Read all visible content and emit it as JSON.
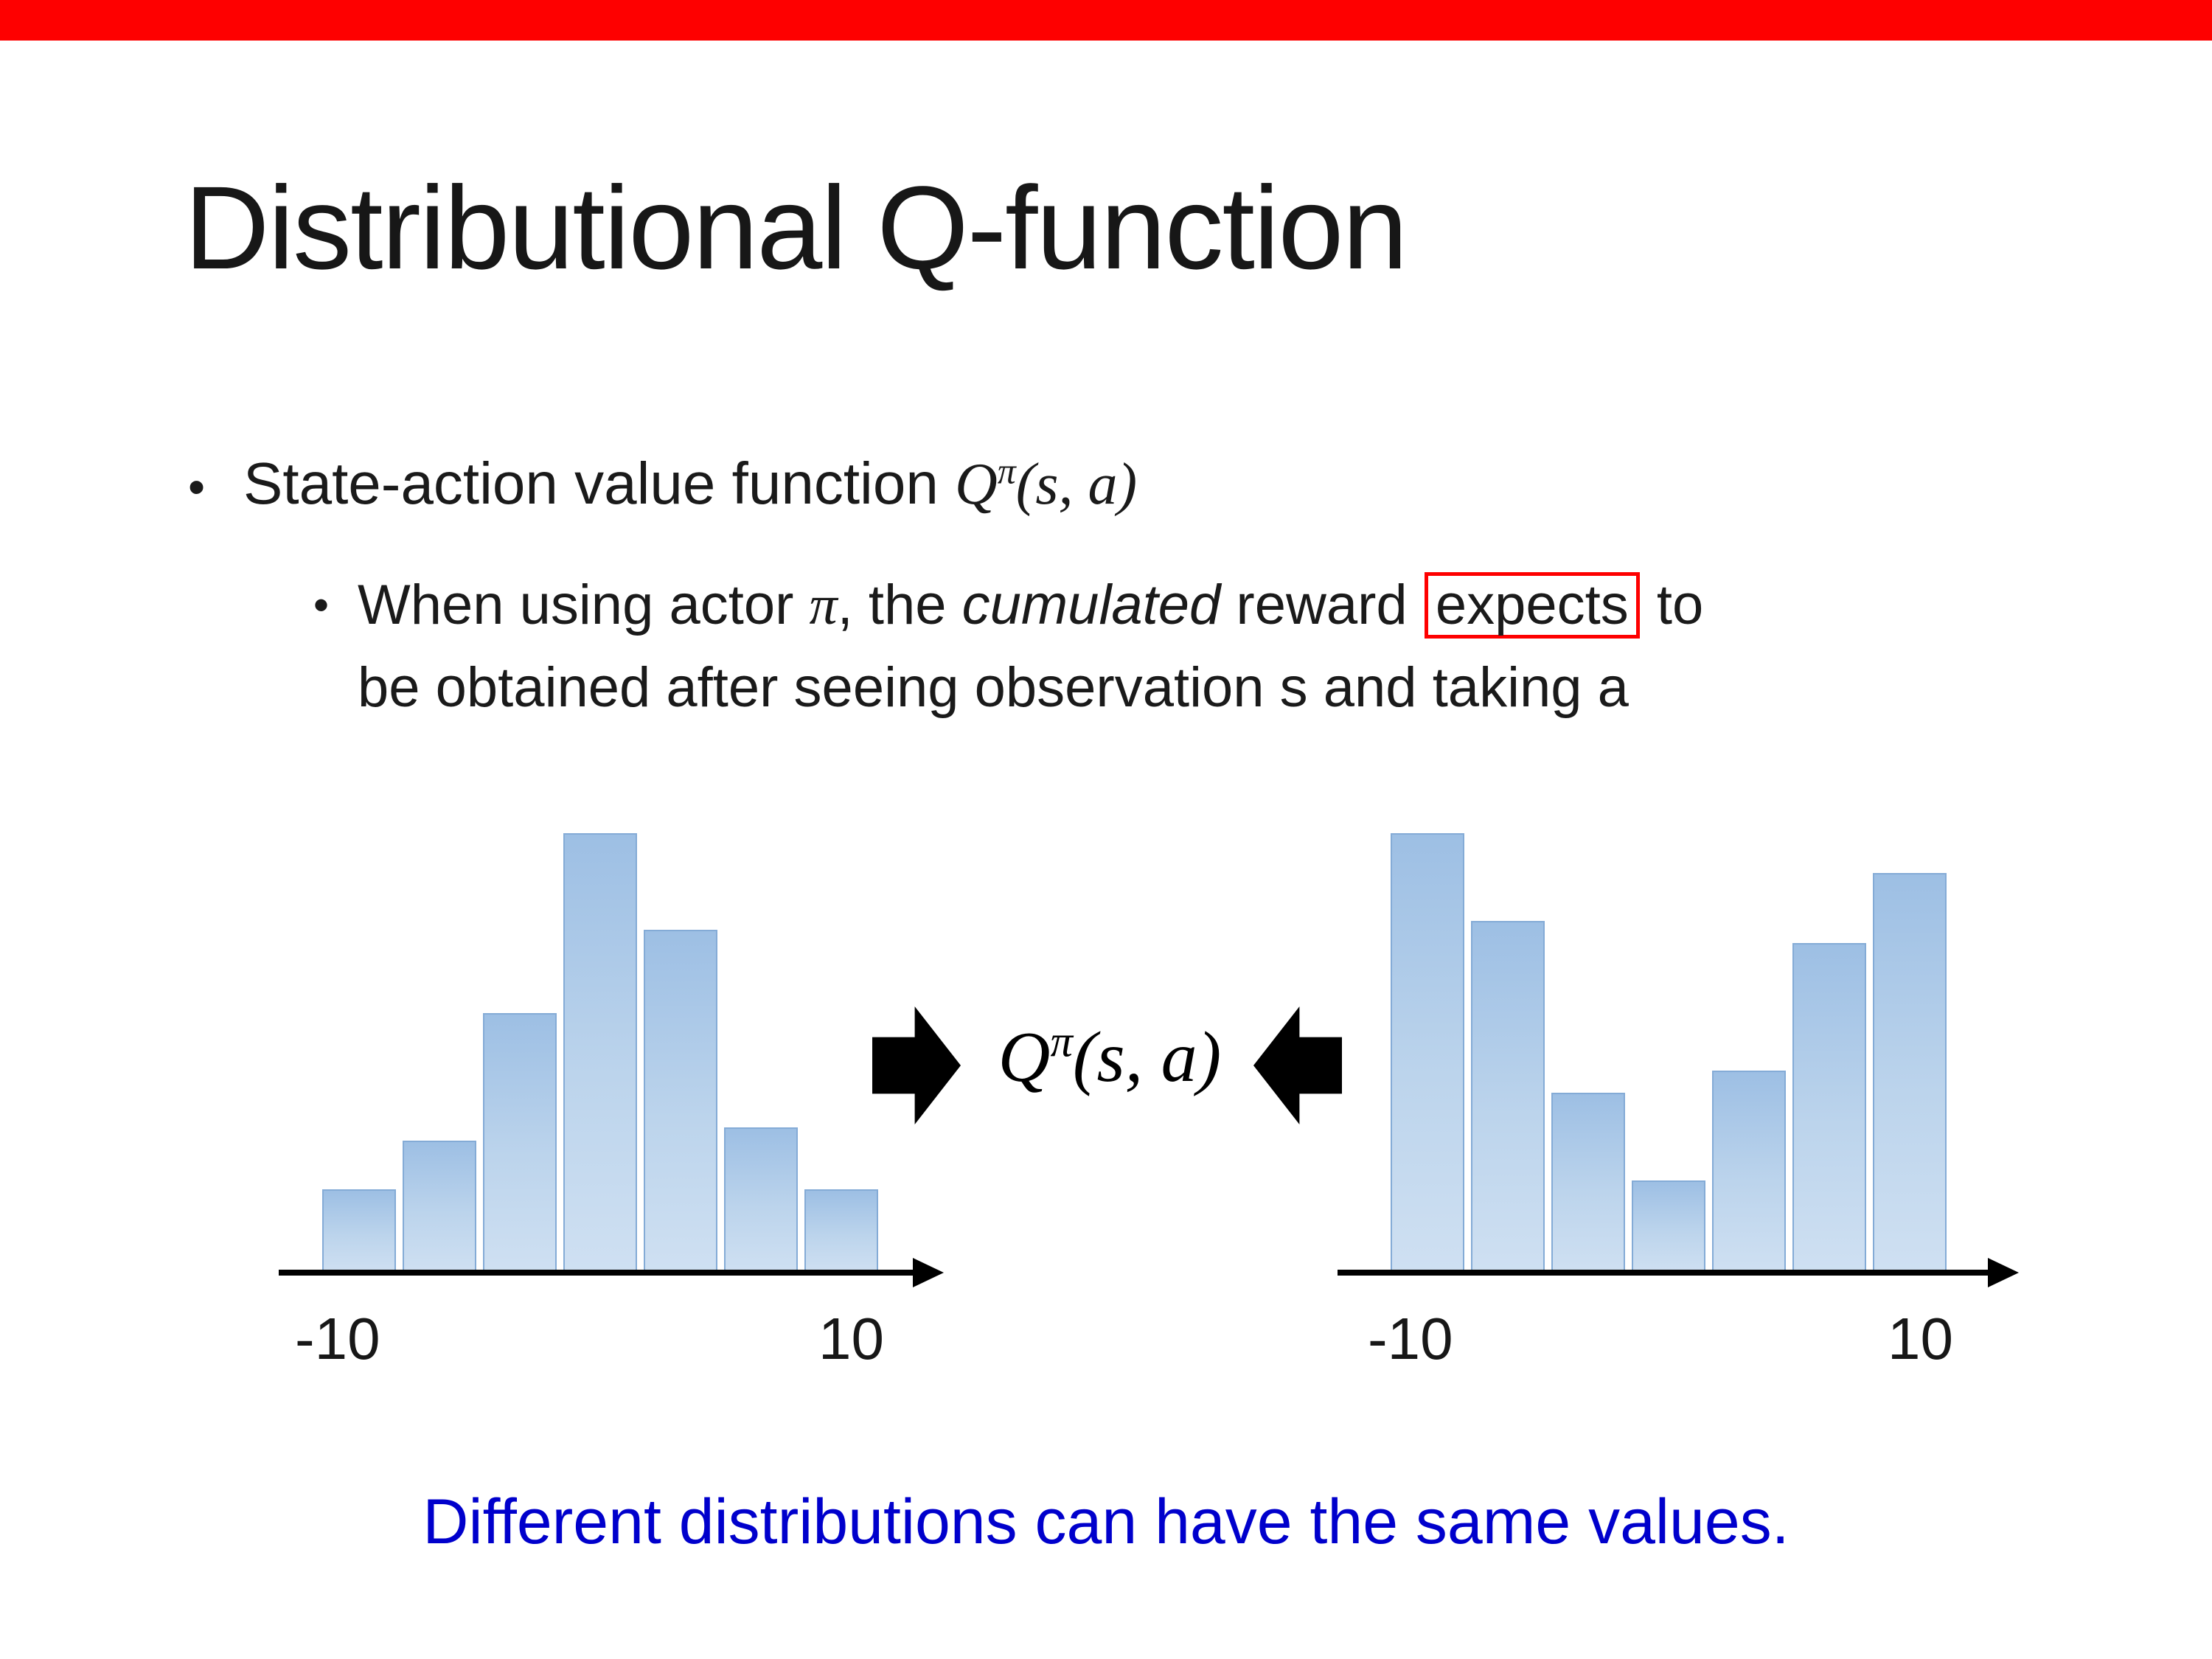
{
  "colors": {
    "top_bar": "#fe0000",
    "highlight_box": "#fe0000",
    "bottom_text": "#0000cc",
    "bar_fill_top": "#9dbfe4",
    "bar_fill_bottom": "#cfe0f2",
    "bar_border": "#84abd6"
  },
  "title": "Distributional Q-function",
  "bullet": {
    "marker": "•",
    "text": "State-action value function ",
    "math": {
      "q": "Q",
      "sup": "π",
      "args": "(s, a)"
    }
  },
  "sub_bullet": {
    "marker": "•",
    "line1": {
      "part1": "When using actor ",
      "pi": "π",
      "part2": ", the ",
      "italic": "cumulated",
      "part3": " reward ",
      "boxed": "expects",
      "part4": " to"
    },
    "line2": "be obtained after seeing observation s and taking a"
  },
  "formula": {
    "q": "Q",
    "sup": "π",
    "args": "(s, a)"
  },
  "bottom_note": "Different distributions can have the same values.",
  "chart_data": [
    {
      "type": "bar",
      "title": "unimodal return distribution",
      "x_ticks": [
        "-10",
        "10"
      ],
      "x_range": [
        -10,
        10
      ],
      "values": [
        0.19,
        0.3,
        0.59,
        1.0,
        0.78,
        0.33,
        0.19
      ],
      "ylabel": "",
      "grid": false,
      "legend": false
    },
    {
      "type": "bar",
      "title": "bimodal return distribution",
      "x_ticks": [
        "-10",
        "10"
      ],
      "x_range": [
        -10,
        10
      ],
      "values": [
        1.0,
        0.8,
        0.41,
        0.21,
        0.46,
        0.75,
        0.91
      ],
      "ylabel": "",
      "grid": false,
      "legend": false
    }
  ],
  "axis_labels": {
    "left_min": "-10",
    "left_max": "10",
    "right_min": "-10",
    "right_max": "10"
  }
}
